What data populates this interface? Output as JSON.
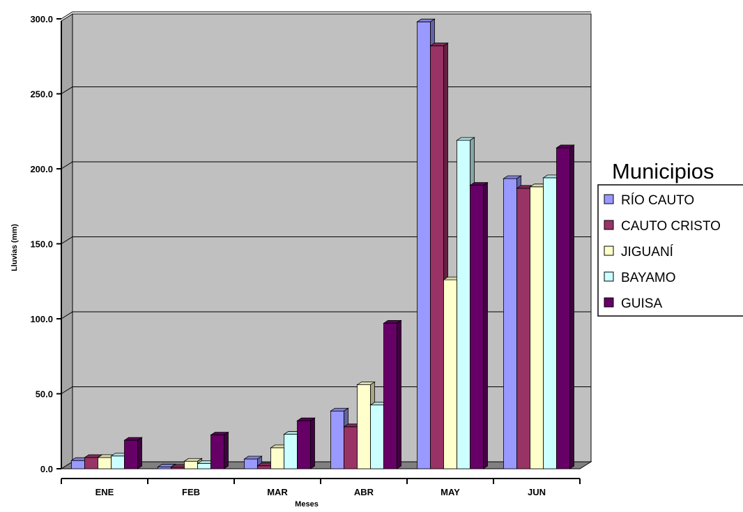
{
  "chart_data": {
    "type": "bar",
    "categories": [
      "ENE",
      "FEB",
      "MAR",
      "ABR",
      "MAY",
      "JUN"
    ],
    "series": [
      {
        "name": "RÍO CAUTO",
        "values": [
          5.5,
          1.2,
          6.5,
          38.5,
          298,
          193.5
        ]
      },
      {
        "name": "CAUTO CRISTO",
        "values": [
          7.5,
          1.0,
          2.0,
          28.0,
          282,
          187
        ]
      },
      {
        "name": "JIGUANÍ",
        "values": [
          7.5,
          5.0,
          14.0,
          56.0,
          126,
          188
        ]
      },
      {
        "name": "BAYAMO",
        "values": [
          8.5,
          3.5,
          23.0,
          42.5,
          219,
          194
        ]
      },
      {
        "name": "GUISA",
        "values": [
          19.0,
          22.5,
          32.0,
          97.0,
          189,
          214
        ]
      }
    ],
    "colors": [
      "#9999ff",
      "#993366",
      "#ffffcc",
      "#ccffff",
      "#660066"
    ],
    "yticks": [
      "0.0",
      "50.0",
      "100.0",
      "150.0",
      "200.0",
      "250.0",
      "300.0"
    ],
    "ylim": [
      0,
      300
    ],
    "ylabel": "Lluvias (mm)",
    "xlabel": "Meses",
    "legend_title": "Municipios",
    "legend_position": "right",
    "grid": true,
    "style": "3d-column",
    "wall_color": "#c0c0c0",
    "floor_color": "#808080"
  }
}
